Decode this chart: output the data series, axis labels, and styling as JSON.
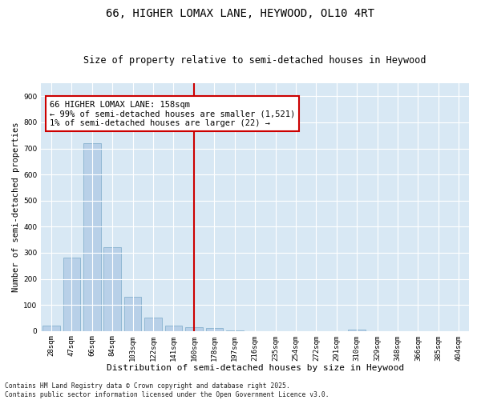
{
  "title1": "66, HIGHER LOMAX LANE, HEYWOOD, OL10 4RT",
  "title2": "Size of property relative to semi-detached houses in Heywood",
  "xlabel": "Distribution of semi-detached houses by size in Heywood",
  "ylabel": "Number of semi-detached properties",
  "categories": [
    "28sqm",
    "47sqm",
    "66sqm",
    "84sqm",
    "103sqm",
    "122sqm",
    "141sqm",
    "160sqm",
    "178sqm",
    "197sqm",
    "216sqm",
    "235sqm",
    "254sqm",
    "272sqm",
    "291sqm",
    "310sqm",
    "329sqm",
    "348sqm",
    "366sqm",
    "385sqm",
    "404sqm"
  ],
  "values": [
    20,
    280,
    720,
    320,
    130,
    50,
    20,
    15,
    10,
    3,
    0,
    0,
    0,
    0,
    0,
    4,
    0,
    0,
    0,
    0,
    0
  ],
  "bar_color": "#b8d0e8",
  "bar_edge_color": "#7aaac8",
  "vline_color": "#cc0000",
  "annotation_box_color": "#cc0000",
  "background_color": "#d8e8f4",
  "grid_color": "#ffffff",
  "ylim": [
    0,
    950
  ],
  "yticks": [
    0,
    100,
    200,
    300,
    400,
    500,
    600,
    700,
    800,
    900
  ],
  "footer_text": "Contains HM Land Registry data © Crown copyright and database right 2025.\nContains public sector information licensed under the Open Government Licence v3.0.",
  "title1_fontsize": 10,
  "title2_fontsize": 8.5,
  "xlabel_fontsize": 8,
  "ylabel_fontsize": 7.5,
  "tick_fontsize": 6.5,
  "annotation_fontsize": 7.5,
  "footer_fontsize": 5.8,
  "annotation_line1": "66 HIGHER LOMAX LANE: 158sqm",
  "annotation_line2": "← 99% of semi-detached houses are smaller (1,521)",
  "annotation_line3": "1% of semi-detached houses are larger (22) →"
}
